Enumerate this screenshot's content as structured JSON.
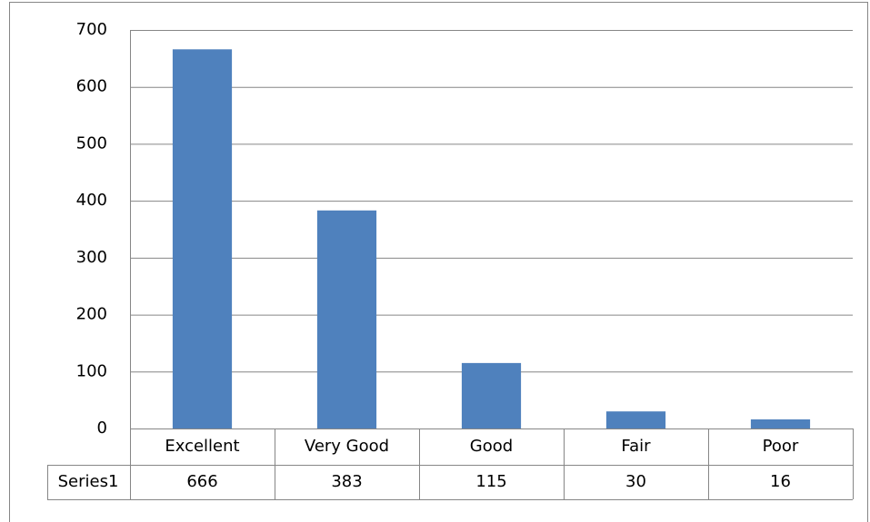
{
  "chart_data": {
    "type": "bar",
    "series_name": "Series1",
    "categories": [
      "Excellent",
      "Very  Good",
      "Good",
      "Fair",
      "Poor"
    ],
    "values": [
      666,
      383,
      115,
      30,
      16
    ],
    "color": "#4f81bd",
    "ylim": [
      0,
      700
    ],
    "yticks": [
      0,
      100,
      200,
      300,
      400,
      500,
      600,
      700
    ],
    "grid": true
  }
}
